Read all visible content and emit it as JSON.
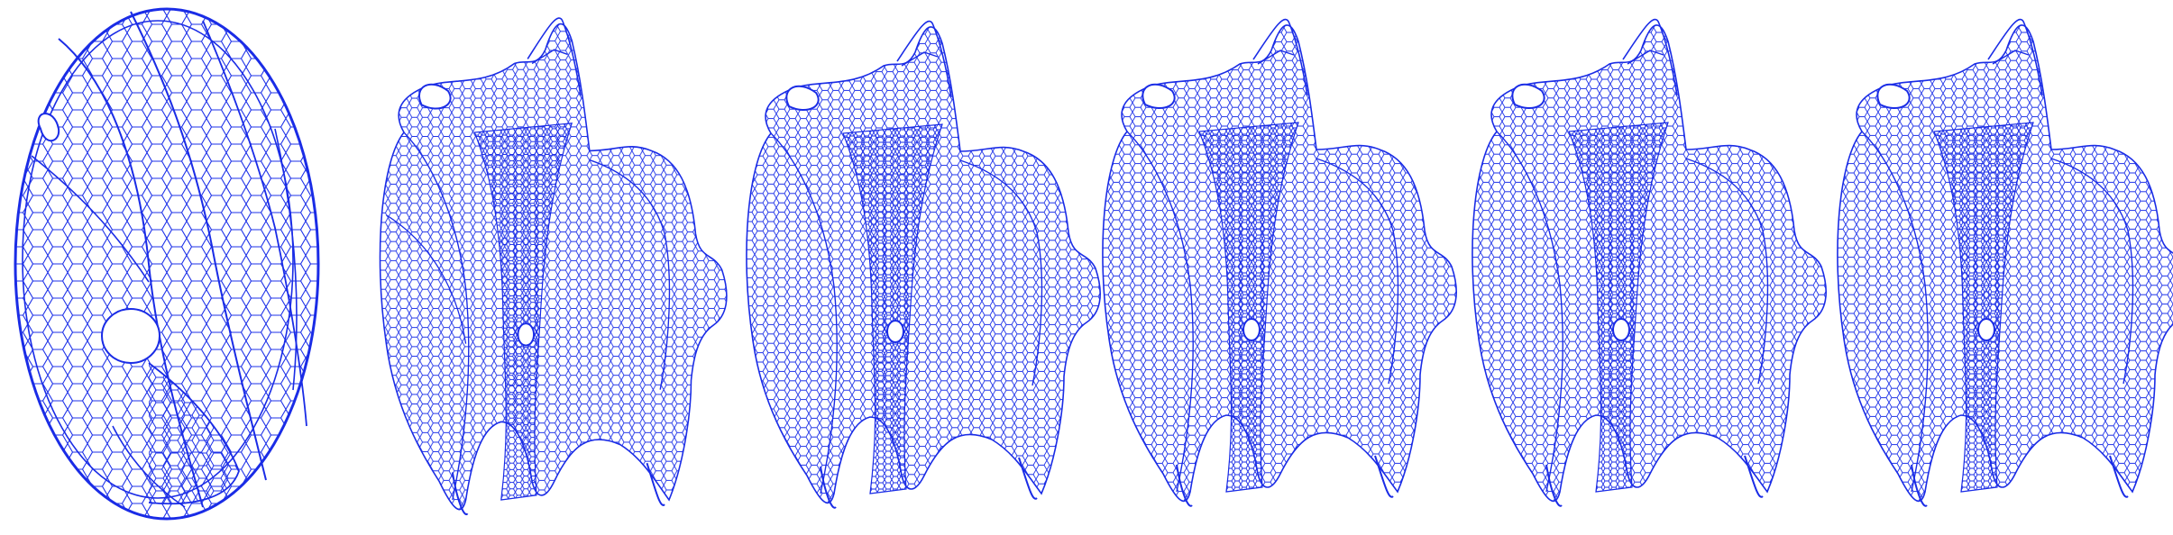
{
  "figure": {
    "panel_count": 6,
    "mesh_color": "#1428e6",
    "mesh_color_light": "#3a4cf0",
    "background": "#ffffff",
    "panels": [
      {
        "stage": 1,
        "shape": "ellipsoid-initial"
      },
      {
        "stage": 2,
        "shape": "deformed-intermediate"
      },
      {
        "stage": 3,
        "shape": "deformed-intermediate"
      },
      {
        "stage": 4,
        "shape": "deformed-intermediate"
      },
      {
        "stage": 5,
        "shape": "deformed-intermediate"
      },
      {
        "stage": 6,
        "shape": "deformed-final"
      }
    ]
  }
}
